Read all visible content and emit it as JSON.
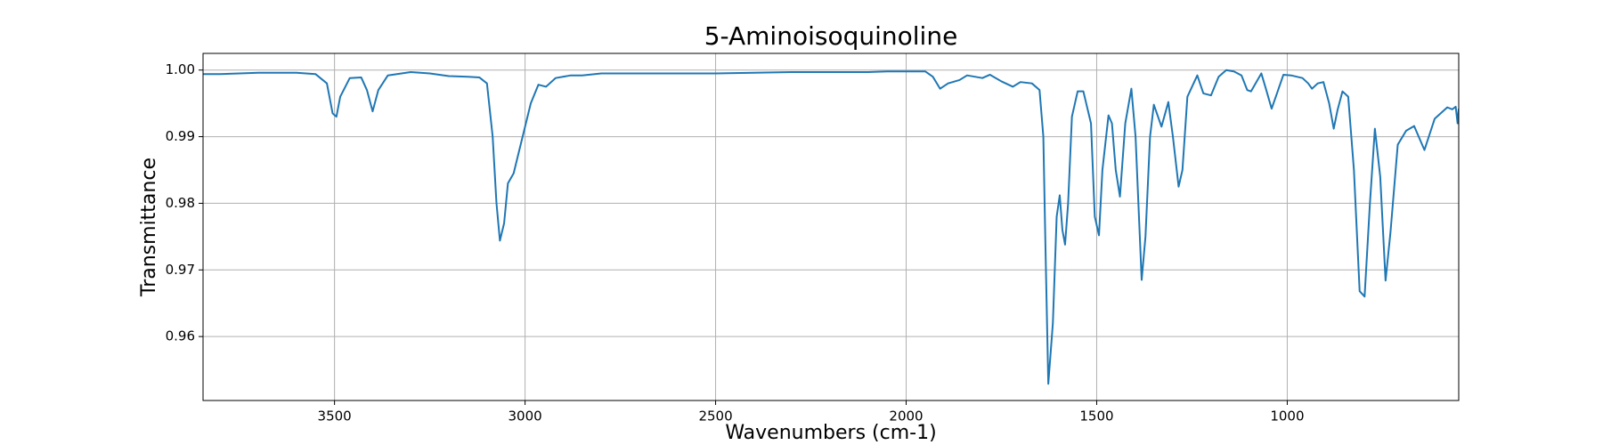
{
  "chart_data": {
    "type": "line",
    "title": "5-Aminoisoquinoline",
    "xlabel": "Wavenumbers (cm-1)",
    "ylabel": "Transmittance",
    "color": "#1f77b4",
    "grid": true,
    "xlim": [
      3845,
      550
    ],
    "ylim": [
      0.9504,
      1.0025
    ],
    "xticks": [
      3500,
      3000,
      2500,
      2000,
      1500,
      1000
    ],
    "yticks": [
      0.96,
      0.97,
      0.98,
      0.99,
      {
        "value": 1,
        "label": "1.00"
      }
    ],
    "x": [
      3845,
      3800,
      3750,
      3700,
      3650,
      3600,
      3550,
      3520,
      3505,
      3495,
      3485,
      3460,
      3430,
      3415,
      3400,
      3385,
      3360,
      3300,
      3250,
      3200,
      3150,
      3120,
      3100,
      3085,
      3075,
      3066,
      3055,
      3045,
      3030,
      3015,
      3000,
      2985,
      2965,
      2945,
      2920,
      2880,
      2850,
      2800,
      2700,
      2600,
      2500,
      2400,
      2300,
      2200,
      2100,
      2050,
      1950,
      1930,
      1911,
      1890,
      1860,
      1840,
      1800,
      1780,
      1750,
      1720,
      1700,
      1670,
      1650,
      1640,
      1635,
      1627,
      1615,
      1605,
      1597,
      1590,
      1583,
      1575,
      1565,
      1550,
      1535,
      1515,
      1505,
      1494,
      1485,
      1469,
      1460,
      1450,
      1439,
      1425,
      1409,
      1398,
      1382,
      1372,
      1360,
      1350,
      1330,
      1312,
      1300,
      1285,
      1275,
      1262,
      1236,
      1220,
      1200,
      1180,
      1160,
      1140,
      1120,
      1105,
      1095,
      1068,
      1055,
      1041,
      1030,
      1010,
      990,
      960,
      945,
      935,
      920,
      905,
      890,
      878,
      868,
      855,
      840,
      825,
      810,
      797,
      783,
      770,
      756,
      742,
      729,
      710,
      688,
      667,
      640,
      613,
      580,
      567,
      558,
      553,
      550
    ],
    "values": [
      0.9994,
      0.9994,
      0.9995,
      0.9996,
      0.9996,
      0.9996,
      0.9994,
      0.998,
      0.9935,
      0.993,
      0.996,
      0.9988,
      0.9989,
      0.997,
      0.9938,
      0.997,
      0.9992,
      0.9997,
      0.9995,
      0.9991,
      0.999,
      0.9989,
      0.998,
      0.99,
      0.98,
      0.9744,
      0.977,
      0.983,
      0.9845,
      0.988,
      0.9915,
      0.995,
      0.9978,
      0.9975,
      0.9988,
      0.9992,
      0.9992,
      0.9995,
      0.9995,
      0.9995,
      0.9995,
      0.9996,
      0.9997,
      0.9997,
      0.9997,
      0.9998,
      0.9998,
      0.999,
      0.9972,
      0.998,
      0.9985,
      0.9992,
      0.9988,
      0.9993,
      0.9983,
      0.9975,
      0.9982,
      0.998,
      0.997,
      0.99,
      0.975,
      0.9529,
      0.962,
      0.978,
      0.9812,
      0.976,
      0.9738,
      0.98,
      0.993,
      0.9968,
      0.9968,
      0.992,
      0.978,
      0.9752,
      0.985,
      0.9932,
      0.992,
      0.985,
      0.981,
      0.992,
      0.9972,
      0.99,
      0.9685,
      0.975,
      0.99,
      0.9948,
      0.9915,
      0.9952,
      0.99,
      0.9825,
      0.985,
      0.996,
      0.9992,
      0.9965,
      0.9962,
      0.999,
      1.0,
      0.9998,
      0.9992,
      0.997,
      0.9968,
      0.9995,
      0.997,
      0.9942,
      0.996,
      0.9993,
      0.9992,
      0.9988,
      0.998,
      0.9972,
      0.998,
      0.9982,
      0.995,
      0.9912,
      0.994,
      0.9968,
      0.996,
      0.985,
      0.9668,
      0.966,
      0.98,
      0.9912,
      0.984,
      0.9684,
      0.9757,
      0.9888,
      0.9909,
      0.9916,
      0.988,
      0.9927,
      0.9944,
      0.9941,
      0.9945,
      0.992,
      0.9942
    ]
  }
}
